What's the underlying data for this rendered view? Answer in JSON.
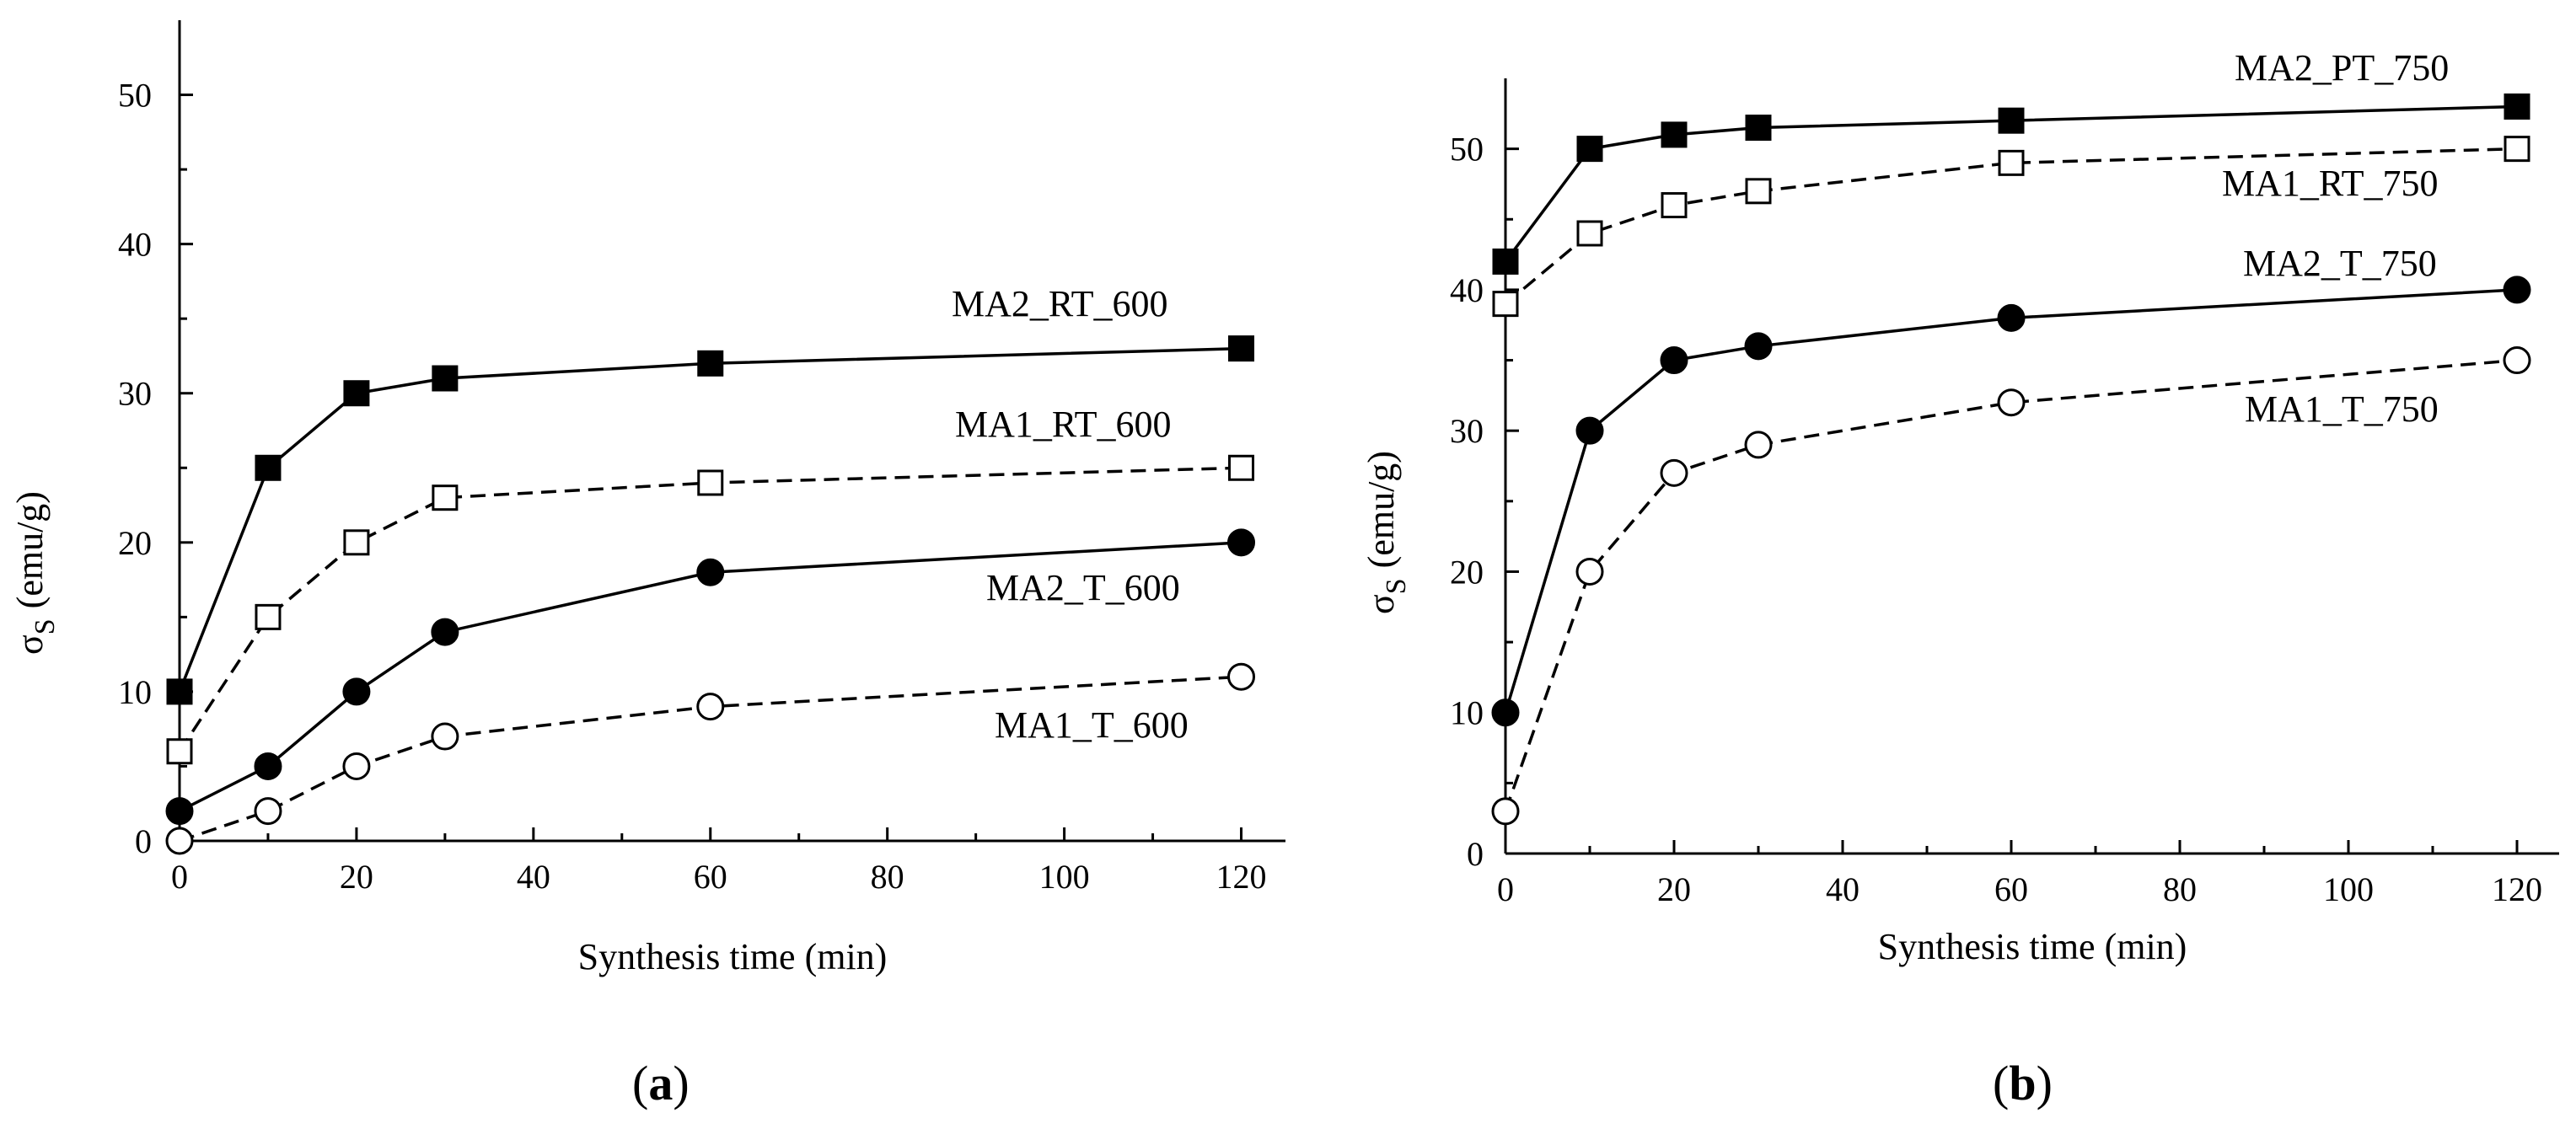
{
  "chart_data": [
    {
      "type": "line",
      "panel": "a",
      "panel_label": "(a)",
      "panel_letter": "a",
      "xlabel": "Synthesis time (min)",
      "ylabel_symbol": "σ",
      "ylabel_sub": "S",
      "ylabel_unit": "(emu/g)",
      "xlim": [
        0,
        125
      ],
      "ylim": [
        0,
        55
      ],
      "xticks": [
        0,
        20,
        40,
        60,
        80,
        100,
        120
      ],
      "yticks": [
        0,
        10,
        20,
        30,
        40,
        50
      ],
      "series": [
        {
          "name": "MA2_RT_600",
          "marker": "square-filled",
          "dash": "solid",
          "x": [
            0,
            10,
            20,
            30,
            60,
            120
          ],
          "y": [
            10,
            25,
            30,
            31,
            32,
            33
          ]
        },
        {
          "name": "MA1_RT_600",
          "marker": "square-open",
          "dash": "dashed",
          "x": [
            0,
            10,
            20,
            30,
            60,
            120
          ],
          "y": [
            6,
            15,
            20,
            23,
            24,
            25
          ]
        },
        {
          "name": "MA2_T_600",
          "marker": "circle-filled",
          "dash": "solid",
          "x": [
            0,
            10,
            20,
            30,
            60,
            120
          ],
          "y": [
            2,
            5,
            10,
            14,
            18,
            20
          ]
        },
        {
          "name": "MA1_T_600",
          "marker": "circle-open",
          "dash": "dashed",
          "x": [
            0,
            10,
            20,
            30,
            60,
            120
          ],
          "y": [
            0,
            2,
            5,
            7,
            9,
            11
          ]
        }
      ]
    },
    {
      "type": "line",
      "panel": "b",
      "panel_label": "(b)",
      "panel_letter": "b",
      "xlabel": "Synthesis time (min)",
      "ylabel_symbol": "σ",
      "ylabel_sub": "S",
      "ylabel_unit": "(emu/g)",
      "xlim": [
        0,
        125
      ],
      "ylim": [
        0,
        55
      ],
      "xticks": [
        0,
        20,
        40,
        60,
        80,
        100,
        120
      ],
      "yticks": [
        0,
        10,
        20,
        30,
        40,
        50
      ],
      "series": [
        {
          "name": "MA2_PT_750",
          "marker": "square-filled",
          "dash": "solid",
          "x": [
            0,
            10,
            20,
            30,
            60,
            120
          ],
          "y": [
            42,
            50,
            51,
            51.5,
            52,
            53
          ]
        },
        {
          "name": "MA1_RT_750",
          "marker": "square-open",
          "dash": "dashed",
          "x": [
            0,
            10,
            20,
            30,
            60,
            120
          ],
          "y": [
            39,
            44,
            46,
            47,
            49,
            50
          ]
        },
        {
          "name": "MA2_T_750",
          "marker": "circle-filled",
          "dash": "solid",
          "x": [
            0,
            10,
            20,
            30,
            60,
            120
          ],
          "y": [
            10,
            30,
            35,
            36,
            38,
            40
          ]
        },
        {
          "name": "MA1_T_750",
          "marker": "circle-open",
          "dash": "dashed",
          "x": [
            0,
            10,
            20,
            30,
            60,
            120
          ],
          "y": [
            3,
            20,
            27,
            29,
            32,
            35
          ]
        }
      ]
    }
  ]
}
